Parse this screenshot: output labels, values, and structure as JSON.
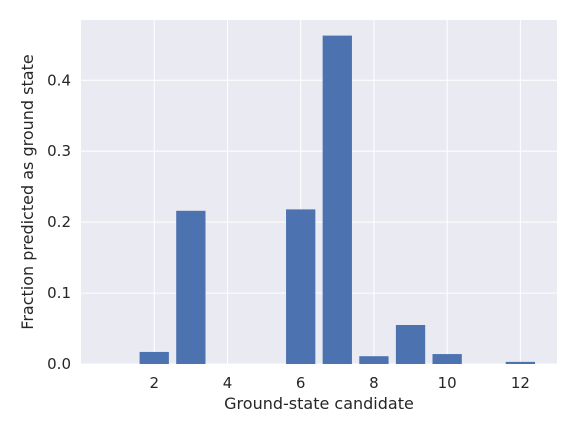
{
  "chart_data": {
    "type": "bar",
    "title": "",
    "xlabel": "Ground-state candidate",
    "ylabel": "Fraction predicted as ground state",
    "x": [
      1,
      2,
      3,
      4,
      5,
      6,
      7,
      8,
      9,
      10,
      11,
      12
    ],
    "values": [
      0.0,
      0.017,
      0.216,
      0.0,
      0.0,
      0.218,
      0.463,
      0.011,
      0.055,
      0.014,
      0.0,
      0.003
    ],
    "xlim": [
      0.0,
      13.0
    ],
    "ylim": [
      0.0,
      0.485
    ],
    "xticks": [
      2,
      4,
      6,
      8,
      10,
      12
    ],
    "yticks": [
      0.0,
      0.1,
      0.2,
      0.3,
      0.4
    ],
    "xtick_labels": [
      "2",
      "4",
      "6",
      "8",
      "10",
      "12"
    ],
    "ytick_labels": [
      "0.0",
      "0.1",
      "0.2",
      "0.3",
      "0.4"
    ],
    "grid": true,
    "colors": {
      "bar": "#4c72b0",
      "background": "#eaeaf2",
      "grid": "#ffffff",
      "text": "#262626"
    }
  }
}
